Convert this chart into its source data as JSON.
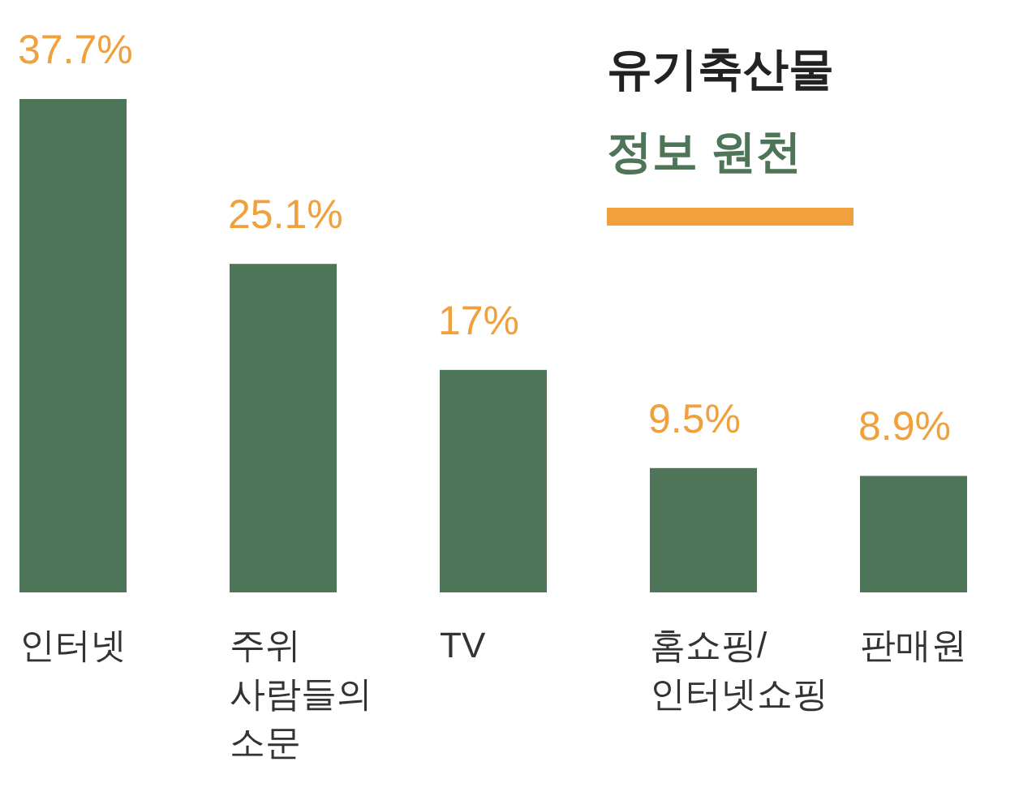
{
  "chart_data": {
    "type": "bar",
    "title": "유기축산물",
    "subtitle": "정보 원천",
    "categories": [
      "인터넷",
      "주위\n사람들의\n소문",
      "TV",
      "홈쇼핑/\n인터넷쇼핑",
      "판매원"
    ],
    "values": [
      37.7,
      25.1,
      17,
      9.5,
      8.9
    ],
    "value_labels": [
      "37.7%",
      "25.1%",
      "17%",
      "9.5%",
      "8.9%"
    ],
    "color": "#4e7558"
  }
}
